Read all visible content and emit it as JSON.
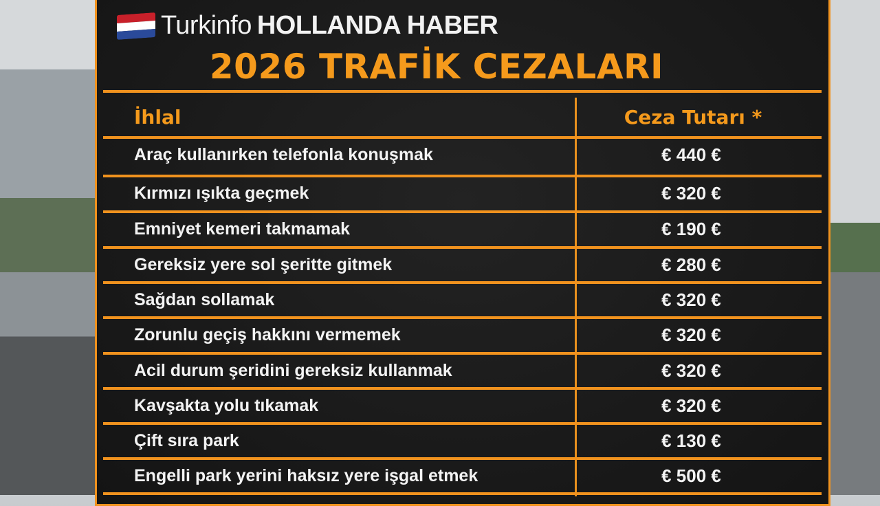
{
  "brand": {
    "name": "Turkinfo",
    "suffix": "HOLLANDA HABER",
    "flag_colors": [
      "#c8202a",
      "#ffffff",
      "#2a4a9a"
    ]
  },
  "title": "2026 TRAFİK CEZALARI",
  "table": {
    "headers": [
      "İhlal",
      "Ceza Tutarı *"
    ],
    "rows": [
      {
        "violation": "Araç kullanırken telefonla konuşmak",
        "fine": "€ 440 €"
      },
      {
        "violation": "Kırmızı ışıkta geçmek",
        "fine": "€ 320 €"
      },
      {
        "violation": "Emniyet kemeri takmamak",
        "fine": "€ 190 €"
      },
      {
        "violation": "Gereksiz yere sol şeritte gitmek",
        "fine": "€ 280 €"
      },
      {
        "violation": "Sağdan sollamak",
        "fine": "€ 320 €"
      },
      {
        "violation": "Zorunlu geçiş hakkını vermemek",
        "fine": "€ 320 €"
      },
      {
        "violation": "Acil durum şeridini gereksiz kullanmak",
        "fine": "€ 320 €"
      },
      {
        "violation": "Kavşakta yolu tıkamak",
        "fine": "€ 320 €"
      },
      {
        "violation": "Çift sıra park",
        "fine": "€ 130 €"
      },
      {
        "violation": "Engelli park yerini haksız yere işgal etmek",
        "fine": "€ 500 €"
      }
    ]
  },
  "colors": {
    "accent": "#f0921e",
    "board": "#1a1a1a",
    "text": "#f3f3f3"
  }
}
